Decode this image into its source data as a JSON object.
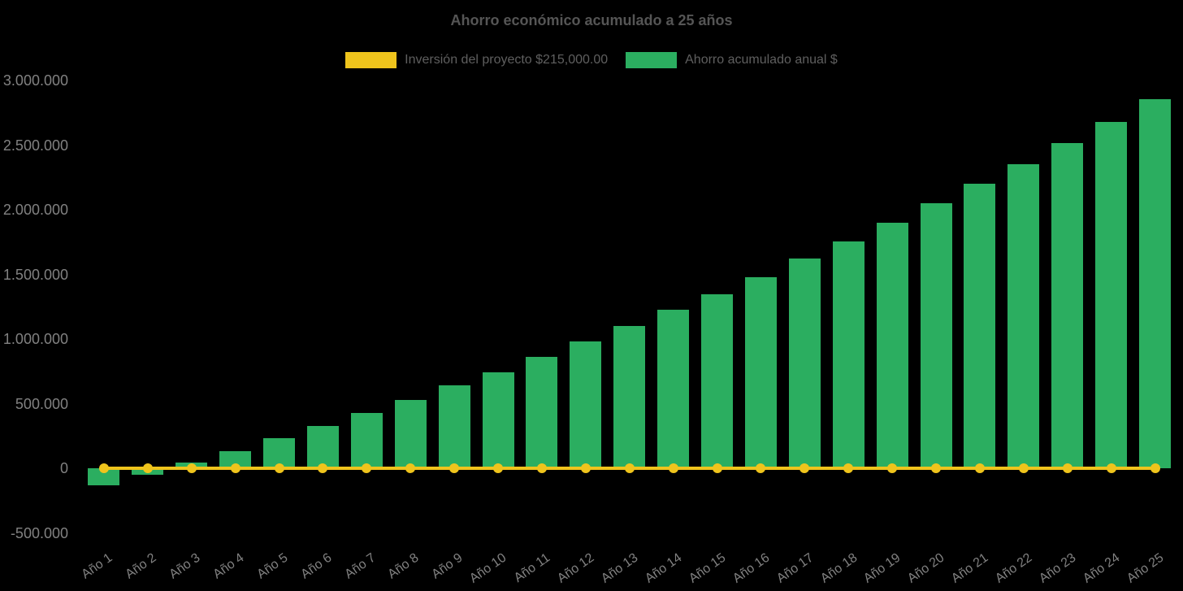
{
  "page": {
    "background": "#000000"
  },
  "chart_data": {
    "type": "bar",
    "title": "Ahorro económico acumulado a 25 años",
    "categories": [
      "Año 1",
      "Año 2",
      "Año 3",
      "Año 4",
      "Año 5",
      "Año 6",
      "Año 7",
      "Año 8",
      "Año 9",
      "Año 10",
      "Año 11",
      "Año 12",
      "Año 13",
      "Año 14",
      "Año 15",
      "Año 16",
      "Año 17",
      "Año 18",
      "Año 19",
      "Año 20",
      "Año 21",
      "Año 22",
      "Año 23",
      "Año 24",
      "Año 25"
    ],
    "series": [
      {
        "name": "Inversión del proyecto $215,000.00",
        "type": "line",
        "color": "#EFC41C",
        "marker": "circle",
        "stated_value_label": "$215,000.00",
        "drawn_at_value": 0
      },
      {
        "name": "Ahorro acumulado anual $",
        "type": "bar",
        "color": "#2BAE60",
        "values": [
          -135000,
          -50000,
          45000,
          135000,
          230000,
          330000,
          425000,
          530000,
          640000,
          740000,
          860000,
          980000,
          1100000,
          1225000,
          1345000,
          1480000,
          1620000,
          1755000,
          1900000,
          2050000,
          2200000,
          2355000,
          2515000,
          2680000,
          2855000
        ]
      }
    ],
    "y_axis": {
      "tick_labels": [
        "3.000.000",
        "2.500.000",
        "2.000.000",
        "1.500.000",
        "1.000.000",
        "500.000",
        "0",
        "-500.000"
      ],
      "tick_values": [
        3000000,
        2500000,
        2000000,
        1500000,
        1000000,
        500000,
        0,
        -500000
      ],
      "min": -500000,
      "max": 3000000
    },
    "x_axis": {
      "label_rotation_deg": -35
    },
    "grid": false,
    "legend_position": "top-center",
    "text_colors": {
      "title": "#555555",
      "legend": "#5f5f5f",
      "ticks": "#818181"
    }
  }
}
